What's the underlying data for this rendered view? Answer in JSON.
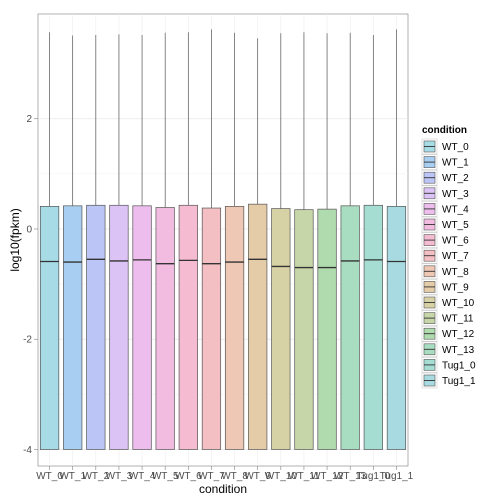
{
  "chart_data": {
    "type": "boxplot",
    "xlabel": "condition",
    "ylabel": "log10(fpkm)",
    "ylim": [
      -4.3,
      3.9
    ],
    "y_ticks": [
      -4,
      -2,
      0,
      2
    ],
    "grid": true,
    "legend_title": "condition",
    "legend_position": "right",
    "categories": [
      "WT_0",
      "WT_1",
      "WT_2",
      "WT_3",
      "WT_4",
      "WT_5",
      "WT_6",
      "WT_7",
      "WT_8",
      "WT_9",
      "WT_10",
      "WT_11",
      "WT_12",
      "WT_13",
      "Tug1_0",
      "Tug1_1"
    ],
    "colors": [
      "#a7dbe6",
      "#a8cff2",
      "#bcc6f6",
      "#dcc3f5",
      "#edbdee",
      "#f2bbe0",
      "#f4bbd1",
      "#f3bfc3",
      "#eec7b5",
      "#e5cca9",
      "#d6d2a5",
      "#c6d6a8",
      "#b0dbae",
      "#a8ddc2",
      "#a5ddd3",
      "#a7dbe1"
    ],
    "boxes": [
      {
        "q1": -4.0,
        "median": -0.59,
        "q3": 0.41,
        "whisker_high": 3.57
      },
      {
        "q1": -4.0,
        "median": -0.6,
        "q3": 0.42,
        "whisker_high": 3.51
      },
      {
        "q1": -4.0,
        "median": -0.55,
        "q3": 0.43,
        "whisker_high": 3.52
      },
      {
        "q1": -4.0,
        "median": -0.58,
        "q3": 0.43,
        "whisker_high": 3.53
      },
      {
        "q1": -4.0,
        "median": -0.56,
        "q3": 0.42,
        "whisker_high": 3.52
      },
      {
        "q1": -4.0,
        "median": -0.63,
        "q3": 0.39,
        "whisker_high": 3.56
      },
      {
        "q1": -4.0,
        "median": -0.57,
        "q3": 0.43,
        "whisker_high": 3.57
      },
      {
        "q1": -4.0,
        "median": -0.63,
        "q3": 0.38,
        "whisker_high": 3.62
      },
      {
        "q1": -4.0,
        "median": -0.6,
        "q3": 0.41,
        "whisker_high": 3.56
      },
      {
        "q1": -4.0,
        "median": -0.55,
        "q3": 0.45,
        "whisker_high": 3.46
      },
      {
        "q1": -4.0,
        "median": -0.68,
        "q3": 0.37,
        "whisker_high": 3.55
      },
      {
        "q1": -4.0,
        "median": -0.7,
        "q3": 0.35,
        "whisker_high": 3.57
      },
      {
        "q1": -4.0,
        "median": -0.7,
        "q3": 0.36,
        "whisker_high": 3.55
      },
      {
        "q1": -4.0,
        "median": -0.58,
        "q3": 0.42,
        "whisker_high": 3.56
      },
      {
        "q1": -4.0,
        "median": -0.56,
        "q3": 0.43,
        "whisker_high": 3.52
      },
      {
        "q1": -4.0,
        "median": -0.59,
        "q3": 0.41,
        "whisker_high": 3.62
      }
    ]
  }
}
